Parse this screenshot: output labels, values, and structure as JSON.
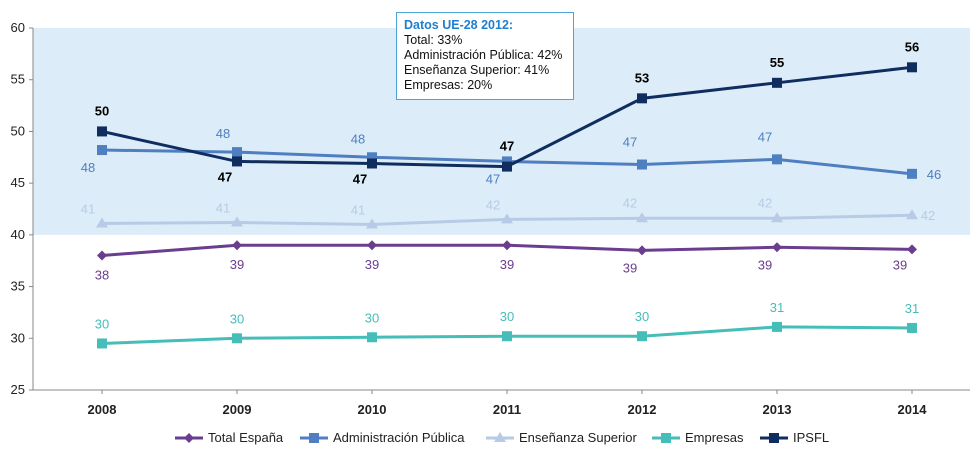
{
  "chart_data": {
    "type": "line",
    "categories": [
      "2008",
      "2009",
      "2010",
      "2011",
      "2012",
      "2013",
      "2014"
    ],
    "ylim": [
      25,
      60
    ],
    "yticks": [
      25,
      30,
      35,
      40,
      45,
      50,
      55,
      60
    ],
    "shaded_band": [
      40,
      60
    ],
    "series": [
      {
        "name": "Total España",
        "color": "#6a3d8f",
        "marker": "diamond",
        "values": [
          38,
          39,
          39,
          39,
          38.5,
          38.8,
          38.6
        ],
        "labels": [
          "38",
          "39",
          "39",
          "39",
          "39",
          "39",
          "39"
        ]
      },
      {
        "name": "Administración Pública",
        "color": "#4f7fc0",
        "marker": "square",
        "values": [
          48.2,
          48,
          47.5,
          47.1,
          46.8,
          47.3,
          45.9
        ],
        "labels": [
          "48",
          "48",
          "48",
          "47",
          "47",
          "47",
          "46"
        ]
      },
      {
        "name": "Enseñanza Superior",
        "color": "#b7cbe6",
        "marker": "triangle",
        "values": [
          41.1,
          41.2,
          41,
          41.5,
          41.6,
          41.6,
          41.9
        ],
        "labels": [
          "41",
          "41",
          "41",
          "42",
          "42",
          "42",
          "42"
        ]
      },
      {
        "name": "Empresas",
        "color": "#45bdb8",
        "marker": "square",
        "values": [
          29.5,
          30,
          30.1,
          30.2,
          30.2,
          31.1,
          31
        ],
        "labels": [
          "30",
          "30",
          "30",
          "30",
          "30",
          "31",
          "31"
        ]
      },
      {
        "name": "IPSFL",
        "color": "#0f2d5e",
        "marker": "square",
        "values": [
          50,
          47.1,
          46.9,
          46.6,
          53.2,
          54.7,
          56.2
        ],
        "labels": [
          "50",
          "47",
          "47",
          "47",
          "53",
          "55",
          "56"
        ]
      }
    ],
    "legend": [
      "Total España",
      "Administración Pública",
      "Enseñanza Superior",
      "Empresas",
      "IPSFL"
    ],
    "legend_position": "bottom"
  },
  "info_box": {
    "title": "Datos UE-28 2012:",
    "lines": [
      "Total: 33%",
      "Administración Pública: 42%",
      "Enseñanza Superior: 41%",
      "Empresas: 20%"
    ]
  }
}
